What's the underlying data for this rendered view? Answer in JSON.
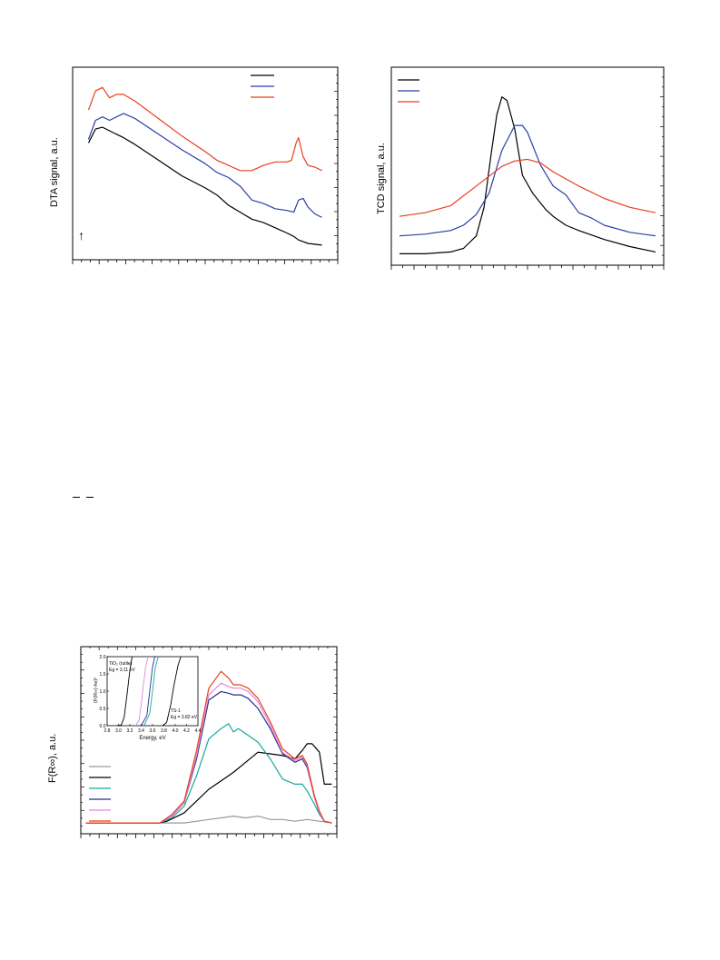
{
  "chart_data": [
    {
      "id": "dta",
      "type": "line",
      "ylabel": "DTA signal, a.u.",
      "xlim": [
        0,
        100
      ],
      "ylim": [
        0,
        100
      ],
      "grid": false,
      "legend": "top-right",
      "series": [
        {
          "color": "#000000",
          "x": [
            0,
            3,
            6,
            9,
            12,
            15,
            20,
            30,
            40,
            50,
            55,
            60,
            65,
            70,
            75,
            80,
            85,
            88,
            90,
            92,
            94,
            100
          ],
          "y": [
            63,
            71,
            72,
            70,
            68,
            66,
            62,
            53,
            44,
            37,
            33,
            27,
            23,
            19,
            17,
            14,
            11,
            9,
            7,
            6,
            5,
            4
          ]
        },
        {
          "color": "#2b3ea8",
          "x": [
            0,
            3,
            6,
            9,
            12,
            15,
            20,
            30,
            40,
            50,
            55,
            60,
            65,
            70,
            75,
            80,
            85,
            88,
            90,
            92,
            94,
            97,
            100
          ],
          "y": [
            65,
            76,
            78,
            76,
            78,
            80,
            77,
            68,
            59,
            51,
            46,
            43,
            38,
            30,
            28,
            25,
            24,
            23,
            30,
            31,
            26,
            22,
            20
          ]
        },
        {
          "color": "#e8401c",
          "x": [
            0,
            3,
            6,
            9,
            12,
            15,
            20,
            30,
            40,
            50,
            55,
            60,
            65,
            70,
            75,
            80,
            85,
            87,
            89,
            90,
            92,
            94,
            97,
            100
          ],
          "y": [
            82,
            93,
            95,
            89,
            91,
            91,
            87,
            77,
            67,
            58,
            53,
            50,
            47,
            47,
            50,
            52,
            52,
            53,
            63,
            66,
            55,
            50,
            49,
            47
          ]
        }
      ]
    },
    {
      "id": "tcd",
      "type": "line",
      "ylabel": "TCD signal, a.u.",
      "xlim": [
        0,
        100
      ],
      "ylim": [
        0,
        100
      ],
      "grid": false,
      "legend": "top-left",
      "series": [
        {
          "color": "#000000",
          "x": [
            0,
            10,
            20,
            25,
            30,
            33,
            36,
            38,
            40,
            42,
            45,
            48,
            52,
            57,
            60,
            65,
            70,
            80,
            90,
            100
          ],
          "y": [
            2,
            2,
            3,
            5,
            12,
            28,
            60,
            80,
            90,
            88,
            72,
            46,
            36,
            27,
            23,
            18,
            15,
            10,
            6,
            3
          ]
        },
        {
          "color": "#2b3ea8",
          "x": [
            0,
            10,
            20,
            25,
            30,
            35,
            40,
            45,
            48,
            50,
            55,
            60,
            65,
            70,
            75,
            80,
            90,
            100
          ],
          "y": [
            12,
            13,
            15,
            18,
            24,
            36,
            60,
            74,
            74,
            70,
            52,
            40,
            35,
            25,
            22,
            18,
            14,
            12
          ]
        },
        {
          "color": "#e8401c",
          "x": [
            0,
            10,
            20,
            30,
            40,
            45,
            50,
            55,
            60,
            70,
            80,
            90,
            100
          ],
          "y": [
            23,
            25,
            29,
            40,
            51,
            54,
            55,
            53,
            48,
            40,
            33,
            28,
            25
          ]
        }
      ]
    },
    {
      "id": "uv",
      "type": "line",
      "ylabel": "F(R∞), a.u.",
      "xlim": [
        0,
        100
      ],
      "ylim": [
        0,
        100
      ],
      "grid": false,
      "legend": "left",
      "series": [
        {
          "color": "#9a9a9a",
          "x": [
            0,
            30,
            40,
            50,
            55,
            60,
            65,
            70,
            75,
            80,
            85,
            90,
            95,
            100
          ],
          "y": [
            2,
            2,
            2,
            4,
            5,
            6,
            5,
            6,
            4,
            4,
            3,
            4,
            3,
            2
          ]
        },
        {
          "color": "#000000",
          "x": [
            0,
            30,
            33,
            40,
            45,
            50,
            55,
            60,
            65,
            70,
            75,
            80,
            85,
            88,
            90,
            92,
            95,
            97,
            100
          ],
          "y": [
            2,
            2,
            3,
            8,
            15,
            22,
            27,
            32,
            38,
            44,
            43,
            42,
            40,
            45,
            49,
            49,
            44,
            25,
            25
          ]
        },
        {
          "color": "#17a89e",
          "x": [
            0,
            30,
            35,
            40,
            45,
            50,
            55,
            58,
            60,
            62,
            65,
            70,
            75,
            80,
            85,
            88,
            90,
            93,
            95,
            97,
            100
          ],
          "y": [
            2,
            2,
            5,
            12,
            30,
            52,
            58,
            61,
            56,
            58,
            55,
            50,
            40,
            28,
            25,
            25,
            21,
            13,
            7,
            3,
            2
          ]
        },
        {
          "color": "#252e8c",
          "x": [
            0,
            30,
            35,
            40,
            45,
            50,
            55,
            58,
            60,
            63,
            66,
            70,
            75,
            80,
            85,
            88,
            90,
            93,
            95,
            97,
            100
          ],
          "y": [
            2,
            2,
            6,
            14,
            40,
            75,
            80,
            79,
            78,
            78,
            76,
            70,
            58,
            43,
            38,
            40,
            35,
            17,
            8,
            3,
            2
          ]
        },
        {
          "color": "#e388d9",
          "x": [
            0,
            30,
            35,
            40,
            45,
            50,
            55,
            58,
            60,
            63,
            66,
            70,
            75,
            80,
            85,
            88,
            90,
            93,
            95,
            97,
            100
          ],
          "y": [
            2,
            2,
            6,
            14,
            42,
            78,
            85,
            83,
            82,
            82,
            80,
            74,
            60,
            44,
            39,
            41,
            36,
            17,
            8,
            3,
            2
          ]
        },
        {
          "color": "#e8401c",
          "x": [
            0,
            30,
            35,
            40,
            45,
            50,
            55,
            58,
            60,
            63,
            66,
            70,
            75,
            80,
            85,
            88,
            90,
            93,
            95,
            97,
            100
          ],
          "y": [
            2,
            2,
            7,
            15,
            45,
            82,
            92,
            88,
            84,
            84,
            82,
            76,
            62,
            46,
            40,
            42,
            37,
            18,
            9,
            3,
            2
          ]
        }
      ],
      "inset": {
        "xlabel": "Energy, eV",
        "ylabel": "(F(R∞)·hν)²",
        "xlim": [
          2.8,
          4.4
        ],
        "ylim": [
          0,
          2.0
        ],
        "x_ticks": [
          "2.8",
          "3.0",
          "3.2",
          "3.4",
          "3.6",
          "3.8",
          "4.0",
          "4.2",
          "4.4"
        ],
        "y_ticks": [
          "0.0",
          "0.5",
          "1.0",
          "1.5",
          "2.0"
        ],
        "annotations": {
          "rutile_name": "TiO₂ (rutile)",
          "rutile_eg": "Eg = 3.11 eV",
          "ts_name": "TS-1",
          "ts_eg": "Eg = 3.82 eV"
        },
        "series": [
          {
            "color": "#000000",
            "x": [
              2.98,
              3.05,
              3.1,
              3.15,
              3.2,
              3.24
            ],
            "y": [
              0.0,
              0.02,
              0.25,
              0.9,
              1.6,
              2.0
            ]
          },
          {
            "color": "#e388d9",
            "x": [
              3.3,
              3.36,
              3.4,
              3.44,
              3.48,
              3.52
            ],
            "y": [
              0.0,
              0.15,
              0.6,
              1.2,
              1.7,
              2.0
            ]
          },
          {
            "color": "#252e8c",
            "x": [
              3.4,
              3.5,
              3.55,
              3.6,
              3.64
            ],
            "y": [
              0.0,
              0.3,
              1.0,
              1.7,
              2.0
            ]
          },
          {
            "color": "#17a89e",
            "x": [
              3.45,
              3.55,
              3.6,
              3.65,
              3.7
            ],
            "y": [
              0.0,
              0.35,
              1.0,
              1.7,
              2.0
            ]
          },
          {
            "color": "#000000",
            "x": [
              3.78,
              3.85,
              3.92,
              3.98,
              4.05,
              4.1
            ],
            "y": [
              0.0,
              0.1,
              0.6,
              1.2,
              1.75,
              2.0
            ]
          }
        ]
      }
    }
  ],
  "misc": {
    "arrow_symbol": "↑"
  }
}
